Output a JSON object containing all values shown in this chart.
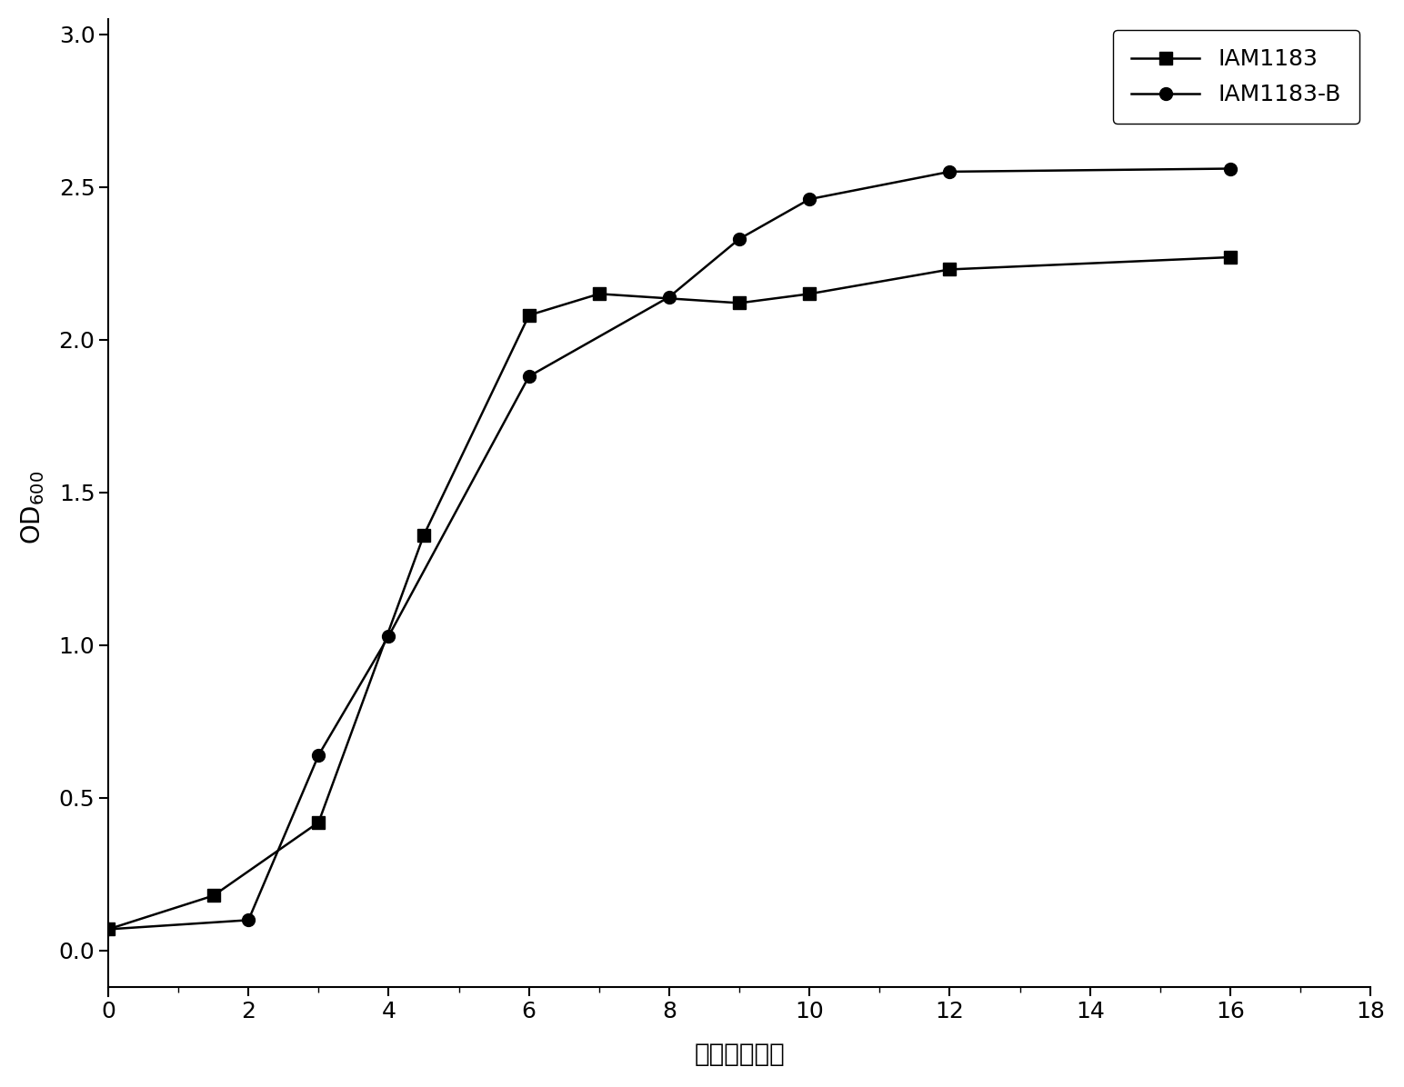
{
  "series1_label": "IAM1183",
  "series1_x": [
    0,
    1.5,
    3,
    4.5,
    6,
    7,
    9,
    10,
    12,
    16
  ],
  "series1_y": [
    0.07,
    0.18,
    0.42,
    1.36,
    2.08,
    2.15,
    2.12,
    2.15,
    2.23,
    2.27
  ],
  "series2_label": "IAM1183-B",
  "series2_x": [
    0,
    2,
    3,
    4,
    6,
    8,
    9,
    10,
    12,
    16
  ],
  "series2_y": [
    0.07,
    0.1,
    0.64,
    1.03,
    1.88,
    2.14,
    2.33,
    2.46,
    2.55,
    2.56
  ],
  "xlabel": "时间（小时）",
  "ylabel_main": "OD",
  "ylabel_sub": "600",
  "xlim": [
    0,
    18
  ],
  "ylim": [
    -0.15,
    3.05
  ],
  "xticks": [
    0,
    2,
    4,
    6,
    8,
    10,
    12,
    14,
    16,
    18
  ],
  "yticks": [
    0.0,
    0.5,
    1.0,
    1.5,
    2.0,
    2.5,
    3.0
  ],
  "line_color": "#000000",
  "marker1": "s",
  "marker2": "o",
  "markersize": 10,
  "linewidth": 1.8
}
